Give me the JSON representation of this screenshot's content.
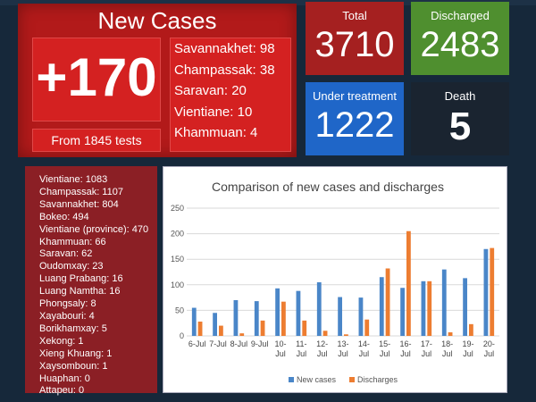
{
  "new_cases": {
    "title": "New Cases",
    "count": "+170",
    "tests_label": "From 1845 tests",
    "provinces": [
      "Savannakhet: 98",
      "Champassak: 38",
      "Saravan: 20",
      "Vientiane: 10",
      "Khammuan: 4"
    ]
  },
  "stats": {
    "total_label": "Total",
    "total_value": "3710",
    "discharged_label": "Discharged",
    "discharged_value": "2483",
    "under_treatment_label": "Under treatment",
    "under_treatment_value": "1222",
    "death_label": "Death",
    "death_value": "5"
  },
  "province_totals": [
    "Vientiane: 1083",
    "Champassak: 1107",
    "Savannakhet: 804",
    "Bokeo: 494",
    "Vientiane (province): 470",
    "Khammuan: 66",
    "Saravan: 62",
    "Oudomxay: 23",
    "Luang Prabang: 16",
    "Luang Namtha: 16",
    "Phongsaly: 8",
    "Xayabouri: 4",
    "Borikhamxay: 5",
    "Xekong: 1",
    "Xieng Khuang: 1",
    "Xaysomboun: 1",
    "Huaphan: 0",
    "Attapeu: 0"
  ],
  "chart_data": {
    "type": "bar",
    "title": "Comparison of new cases and discharges",
    "categories": [
      [
        "6-Jul"
      ],
      [
        "7-Jul"
      ],
      [
        "8-Jul"
      ],
      [
        "9-Jul"
      ],
      [
        "10-",
        "Jul"
      ],
      [
        "11-",
        "Jul"
      ],
      [
        "12-",
        "Jul"
      ],
      [
        "13-",
        "Jul"
      ],
      [
        "14-",
        "Jul"
      ],
      [
        "15-",
        "Jul"
      ],
      [
        "16-",
        "Jul"
      ],
      [
        "17-",
        "Jul"
      ],
      [
        "18-",
        "Jul"
      ],
      [
        "19-",
        "Jul"
      ],
      [
        "20-",
        "Jul"
      ]
    ],
    "series": [
      {
        "name": "New cases",
        "color": "#4a86c8",
        "values": [
          55,
          45,
          70,
          68,
          93,
          88,
          105,
          76,
          75,
          115,
          94,
          107,
          130,
          113,
          170
        ]
      },
      {
        "name": "Discharges",
        "color": "#ed7d31",
        "values": [
          28,
          20,
          5,
          30,
          67,
          30,
          10,
          3,
          32,
          132,
          205,
          107,
          7,
          23,
          172
        ]
      }
    ],
    "ylim": [
      0,
      250
    ],
    "yticks": [
      0,
      50,
      100,
      150,
      200,
      250
    ],
    "grid": true,
    "legend": "bottom"
  }
}
